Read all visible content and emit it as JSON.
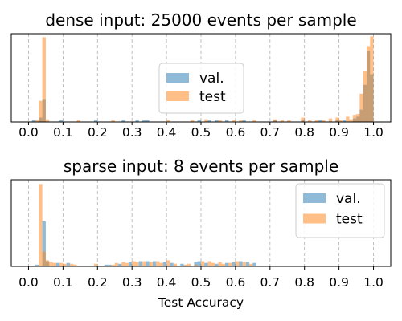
{
  "colors": {
    "val": "#1f77b4",
    "test": "#ff7f0e",
    "grid": "#b0b0b0"
  },
  "chart_data": [
    {
      "type": "bar",
      "subtype": "histogram",
      "title": "dense input: 25000 events per sample",
      "xlabel": "",
      "ylabel": "",
      "xlim": [
        -0.05,
        1.05
      ],
      "xticks": [
        "0.0",
        "0.1",
        "0.2",
        "0.3",
        "0.4",
        "0.5",
        "0.6",
        "0.7",
        "0.8",
        "0.9",
        "1.0"
      ],
      "ylim": [
        0,
        1
      ],
      "grid": "x, dashed",
      "legend": "center",
      "bin_width": 0.01,
      "series": [
        {
          "name": "val.",
          "color": "#1f77b4",
          "x": [
            0.02,
            0.04,
            0.05,
            0.1,
            0.2,
            0.28,
            0.32,
            0.34,
            0.35,
            0.5,
            0.53,
            0.55,
            0.58,
            0.63,
            0.72,
            0.8,
            0.85,
            0.9,
            0.92,
            0.95,
            0.96,
            0.97,
            0.98,
            0.99,
            1.0
          ],
          "y": [
            0.02,
            0.05,
            0.26,
            0.02,
            0.02,
            0.02,
            0.02,
            0.02,
            0.02,
            0.02,
            0.02,
            0.02,
            0.02,
            0.02,
            0.02,
            0.02,
            0.02,
            0.02,
            0.02,
            0.04,
            0.06,
            0.14,
            0.42,
            0.81,
            0.54
          ]
        },
        {
          "name": "test",
          "color": "#ff7f0e",
          "x": [
            0.03,
            0.04,
            0.05,
            0.06,
            0.15,
            0.25,
            0.41,
            0.48,
            0.52,
            0.56,
            0.6,
            0.62,
            0.66,
            0.72,
            0.74,
            0.76,
            0.8,
            0.82,
            0.84,
            0.86,
            0.88,
            0.9,
            0.91,
            0.93,
            0.94,
            0.95,
            0.96,
            0.97,
            0.98,
            0.99,
            1.0
          ],
          "y": [
            0.02,
            0.24,
            0.96,
            0.03,
            0.02,
            0.02,
            0.02,
            0.02,
            0.03,
            0.02,
            0.02,
            0.02,
            0.02,
            0.03,
            0.02,
            0.02,
            0.05,
            0.02,
            0.02,
            0.02,
            0.04,
            0.05,
            0.02,
            0.06,
            0.03,
            0.08,
            0.09,
            0.32,
            0.58,
            0.86,
            0.97
          ]
        }
      ]
    },
    {
      "type": "bar",
      "subtype": "histogram",
      "title": "sparse input: 8 events per sample",
      "xlabel": "Test Accuracy",
      "ylabel": "",
      "xlim": [
        -0.05,
        1.05
      ],
      "xticks": [
        "0.0",
        "0.1",
        "0.2",
        "0.3",
        "0.4",
        "0.5",
        "0.6",
        "0.7",
        "0.8",
        "0.9",
        "1.0"
      ],
      "ylim": [
        0,
        1
      ],
      "grid": "x, dashed",
      "legend": "top-right",
      "bin_width": 0.01,
      "series": [
        {
          "name": "val.",
          "color": "#1f77b4",
          "x": [
            0.03,
            0.05,
            0.06,
            0.09,
            0.12,
            0.23,
            0.24,
            0.27,
            0.3,
            0.33,
            0.35,
            0.37,
            0.4,
            0.42,
            0.45,
            0.49,
            0.5,
            0.52,
            0.55,
            0.58,
            0.6,
            0.62,
            0.64,
            0.66
          ],
          "y": [
            0.02,
            0.52,
            0.06,
            0.04,
            0.04,
            0.02,
            0.02,
            0.03,
            0.05,
            0.06,
            0.06,
            0.06,
            0.05,
            0.04,
            0.03,
            0.05,
            0.06,
            0.04,
            0.03,
            0.04,
            0.05,
            0.06,
            0.05,
            0.04
          ]
        },
        {
          "name": "test",
          "color": "#ff7f0e",
          "x": [
            0.04,
            0.05,
            0.06,
            0.07,
            0.08,
            0.1,
            0.11,
            0.13,
            0.14,
            0.2,
            0.25,
            0.26,
            0.28,
            0.29,
            0.31,
            0.32,
            0.34,
            0.36,
            0.38,
            0.39,
            0.41,
            0.43,
            0.46,
            0.47,
            0.49,
            0.51,
            0.53,
            0.54,
            0.56,
            0.57,
            0.59,
            0.61,
            0.63,
            0.65
          ],
          "y": [
            0.95,
            0.17,
            0.07,
            0.05,
            0.04,
            0.04,
            0.03,
            0.03,
            0.02,
            0.03,
            0.02,
            0.04,
            0.05,
            0.04,
            0.06,
            0.05,
            0.06,
            0.05,
            0.06,
            0.04,
            0.07,
            0.03,
            0.02,
            0.03,
            0.02,
            0.06,
            0.06,
            0.04,
            0.05,
            0.03,
            0.04,
            0.06,
            0.05,
            0.03
          ]
        }
      ]
    }
  ]
}
